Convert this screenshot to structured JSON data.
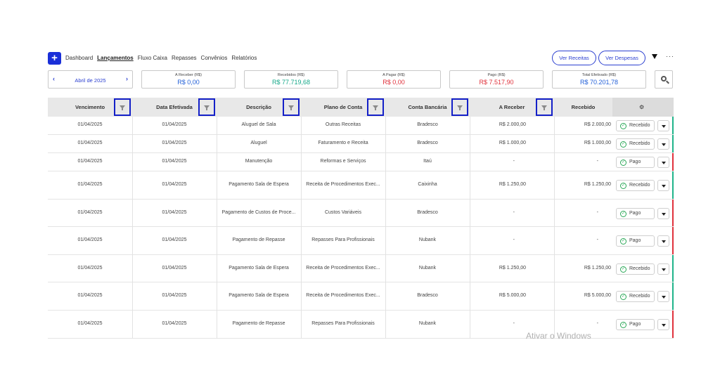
{
  "nav": {
    "add_label": "+",
    "links": [
      "Dashboard",
      "Lançamentos",
      "Fluxo Caixa",
      "Repasses",
      "Convênios",
      "Relatórios"
    ],
    "active": "Lançamentos",
    "ver_receitas": "Ver Receitas",
    "ver_despesas": "Ver Despesas",
    "more": "···"
  },
  "period": {
    "label": "Abril de 2025",
    "prev": "‹",
    "next": "›"
  },
  "summary": [
    {
      "title": "A Receber (R$)",
      "value": "R$ 0,00",
      "color": "#2461d8"
    },
    {
      "title": "Recebidos (R$)",
      "value": "R$ 77.719,68",
      "color": "#17a98a"
    },
    {
      "title": "A Pagar (R$)",
      "value": "R$ 0,00",
      "color": "#e0323c"
    },
    {
      "title": "Pago (R$)",
      "value": "R$ 7.517,90",
      "color": "#e0323c"
    },
    {
      "title": "Total Efetivado (R$)",
      "value": "R$ 70.201,78",
      "color": "#2461d8"
    }
  ],
  "table": {
    "headers": [
      "Vencimento",
      "Data Efetivada",
      "Descrição",
      "Plano de Conta",
      "Conta Bancária",
      "A Receber",
      "Recebido"
    ],
    "rows": [
      {
        "venc": "01/04/2025",
        "efet": "01/04/2025",
        "desc": "Aluguel de Sala",
        "plano": "Outras Receitas",
        "conta": "Bradesco",
        "receber": "R$ 2.000,00",
        "recebido": "R$ 2.000,00",
        "status": "Recebido",
        "stripe": "#20b48a"
      },
      {
        "venc": "01/04/2025",
        "efet": "01/04/2025",
        "desc": "Aluguel",
        "plano": "Faturamento e Receita",
        "conta": "Bradesco",
        "receber": "R$ 1.000,00",
        "recebido": "R$ 1.000,00",
        "status": "Recebido",
        "stripe": "#20b48a"
      },
      {
        "venc": "01/04/2025",
        "efet": "01/04/2025",
        "desc": "Manutenção",
        "plano": "Reformas e Serviços",
        "conta": "Itaú",
        "receber": "-",
        "recebido": "-",
        "status": "Pago",
        "stripe": "#e0323c"
      },
      {
        "venc": "01/04/2025",
        "efet": "01/04/2025",
        "desc": "Pagamento Sala de Espera",
        "plano": "Receita de Procedimentos Exec...",
        "conta": "Caixinha",
        "receber": "R$ 1.250,00",
        "recebido": "R$ 1.250,00",
        "status": "Recebido",
        "stripe": "#20b48a"
      },
      {
        "venc": "01/04/2025",
        "efet": "01/04/2025",
        "desc": "Pagamento de Custos de Proce...",
        "plano": "Custos Variáveis",
        "conta": "Bradesco",
        "receber": "-",
        "recebido": "-",
        "status": "Pago",
        "stripe": "#e0323c"
      },
      {
        "venc": "01/04/2025",
        "efet": "01/04/2025",
        "desc": "Pagamento de Repasse",
        "plano": "Repasses Para Profissionais",
        "conta": "Nubank",
        "receber": "-",
        "recebido": "-",
        "status": "Pago",
        "stripe": "#e0323c"
      },
      {
        "venc": "01/04/2025",
        "efet": "01/04/2025",
        "desc": "Pagamento Sala de Espera",
        "plano": "Receita de Procedimentos Exec...",
        "conta": "Nubank",
        "receber": "R$ 1.250,00",
        "recebido": "R$ 1.250,00",
        "status": "Recebido",
        "stripe": "#20b48a"
      },
      {
        "venc": "01/04/2025",
        "efet": "01/04/2025",
        "desc": "Pagamento Sala de Espera",
        "plano": "Receita de Procedimentos Exec...",
        "conta": "Bradesco",
        "receber": "R$ 5.000,00",
        "recebido": "R$ 5.000,00",
        "status": "Recebido",
        "stripe": "#20b48a"
      },
      {
        "venc": "01/04/2025",
        "efet": "01/04/2025",
        "desc": "Pagamento de Repasse",
        "plano": "Repasses Para Profissionais",
        "conta": "Nubank",
        "receber": "-",
        "recebido": "-",
        "status": "Pago",
        "stripe": "#e0323c"
      }
    ]
  },
  "watermark": "Ativar o Windows",
  "icons": {
    "search": "search-icon",
    "filter": "filter-icon",
    "settings": "gear-icon",
    "check": "check-circle-icon"
  }
}
